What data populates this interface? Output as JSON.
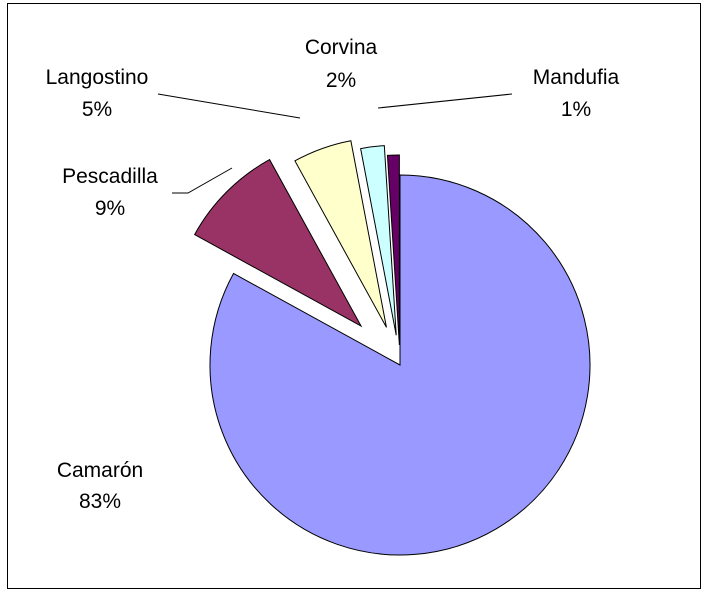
{
  "chart_data": {
    "type": "pie",
    "title": "",
    "slices": [
      {
        "name": "Camarón",
        "value": 83,
        "label": "83%",
        "color": "#9999FF"
      },
      {
        "name": "Pescadilla",
        "value": 9,
        "label": "9%",
        "color": "#993366"
      },
      {
        "name": "Langostino",
        "value": 5,
        "label": "5%",
        "color": "#FFFFCC"
      },
      {
        "name": "Corvina",
        "value": 2,
        "label": "2%",
        "color": "#CCFFFF"
      },
      {
        "name": "Mandufia",
        "value": 1,
        "label": "1%",
        "color": "#660066"
      }
    ],
    "legend": "none",
    "data_labels": "category name and percentage, outside slices with leader lines",
    "exploded": true
  }
}
